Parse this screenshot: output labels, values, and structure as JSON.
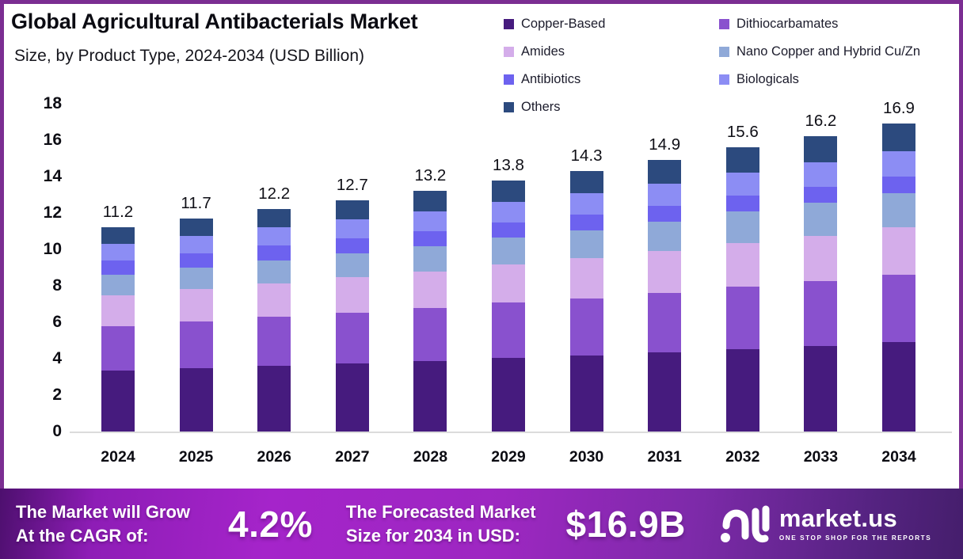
{
  "title": "Global Agricultural Antibacterials Market",
  "subtitle": "Size, by Product Type, 2024-2034 (USD Billion)",
  "colors": {
    "frame_border": "#7B2D92",
    "baseline": "#DCDCDC",
    "banner_bright": "#A524CA",
    "banner_dark": "#451E6C",
    "copper_based": "#461B7E",
    "dithiocarbamates": "#8951CE",
    "amides": "#D4ADEA",
    "nano_copper": "#8FA9D8",
    "antibiotics": "#6D62EF",
    "biologicals": "#8C8DF4",
    "others": "#2C4A7E"
  },
  "chart_data": {
    "type": "bar",
    "stacked": true,
    "title": "Global Agricultural Antibacterials Market Size, by Product Type, 2024-2034 (USD Billion)",
    "xlabel": "",
    "ylabel": "",
    "ylim": [
      0,
      18
    ],
    "yticks": [
      0,
      2,
      4,
      6,
      8,
      10,
      12,
      14,
      16,
      18
    ],
    "grid": false,
    "legend_position": "top-right",
    "categories": [
      "2024",
      "2025",
      "2026",
      "2027",
      "2028",
      "2029",
      "2030",
      "2031",
      "2032",
      "2033",
      "2034"
    ],
    "totals": [
      11.2,
      11.7,
      12.2,
      12.7,
      13.2,
      13.8,
      14.3,
      14.9,
      15.6,
      16.2,
      16.9
    ],
    "totals_labels": [
      "11.2",
      "11.7",
      "12.2",
      "12.7",
      "13.2",
      "13.8",
      "14.3",
      "14.9",
      "15.6",
      "16.2",
      "16.9"
    ],
    "series": [
      {
        "name": "Copper-Based",
        "color": "#461B7E",
        "values": [
          3.35,
          3.48,
          3.62,
          3.75,
          3.89,
          4.05,
          4.19,
          4.35,
          4.53,
          4.71,
          4.9
        ]
      },
      {
        "name": "Dithiocarbamates",
        "color": "#8951CE",
        "values": [
          2.45,
          2.56,
          2.67,
          2.78,
          2.89,
          3.02,
          3.13,
          3.26,
          3.42,
          3.55,
          3.7
        ]
      },
      {
        "name": "Amides",
        "color": "#D4ADEA",
        "values": [
          1.7,
          1.78,
          1.86,
          1.94,
          2.02,
          2.11,
          2.19,
          2.29,
          2.4,
          2.49,
          2.6
        ]
      },
      {
        "name": "Nano Copper and Hybrid Cu/Zn",
        "color": "#8FA9D8",
        "values": [
          1.1,
          1.17,
          1.25,
          1.32,
          1.39,
          1.47,
          1.55,
          1.63,
          1.72,
          1.81,
          1.9
        ]
      },
      {
        "name": "Antibiotics",
        "color": "#6D62EF",
        "values": [
          0.8,
          0.81,
          0.81,
          0.82,
          0.82,
          0.83,
          0.84,
          0.85,
          0.87,
          0.88,
          0.9
        ]
      },
      {
        "name": "Biologicals",
        "color": "#8C8DF4",
        "values": [
          0.9,
          0.94,
          0.99,
          1.03,
          1.08,
          1.13,
          1.17,
          1.23,
          1.29,
          1.34,
          1.4
        ]
      },
      {
        "name": "Others",
        "color": "#2C4A7E",
        "values": [
          0.9,
          0.95,
          1.01,
          1.06,
          1.12,
          1.18,
          1.23,
          1.29,
          1.37,
          1.43,
          1.5
        ]
      }
    ]
  },
  "legend_order": [
    "Copper-Based",
    "Dithiocarbamates",
    "Amides",
    "Nano Copper and Hybrid Cu/Zn",
    "Antibiotics",
    "Biologicals",
    "Others"
  ],
  "banner": {
    "stat1_label_line1": "The Market will Grow",
    "stat1_label_line2": "At the CAGR of:",
    "stat1_value": "4.2%",
    "stat2_label_line1": "The Forecasted Market",
    "stat2_label_line2": "Size for 2034 in USD:",
    "stat2_value": "$16.9B",
    "logo_text": "market.us",
    "logo_tagline": "ONE STOP SHOP FOR THE REPORTS"
  }
}
